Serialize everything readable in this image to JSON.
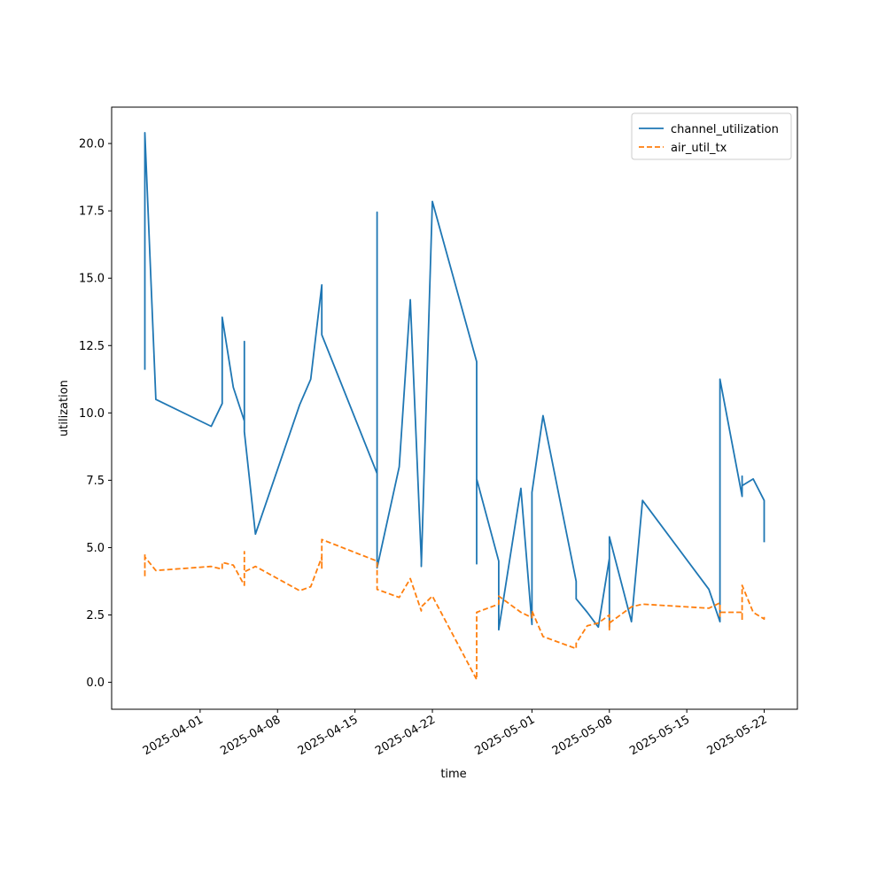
{
  "chart_data": {
    "type": "line",
    "x_label": "time",
    "y_label": "utilization",
    "x": [
      "2025-03-27",
      "2025-03-27",
      "2025-03-27",
      "2025-03-28",
      "2025-04-02",
      "2025-04-03",
      "2025-04-03",
      "2025-04-04",
      "2025-04-05",
      "2025-04-05",
      "2025-04-05",
      "2025-04-06",
      "2025-04-10",
      "2025-04-11",
      "2025-04-12",
      "2025-04-12",
      "2025-04-12",
      "2025-04-17",
      "2025-04-17",
      "2025-04-17",
      "2025-04-19",
      "2025-04-20",
      "2025-04-21",
      "2025-04-21",
      "2025-04-22",
      "2025-04-26",
      "2025-04-26",
      "2025-04-26",
      "2025-04-28",
      "2025-04-28",
      "2025-04-30",
      "2025-05-01",
      "2025-05-01",
      "2025-05-02",
      "2025-05-05",
      "2025-05-05",
      "2025-05-06",
      "2025-05-07",
      "2025-05-08",
      "2025-05-08",
      "2025-05-08",
      "2025-05-10",
      "2025-05-11",
      "2025-05-17",
      "2025-05-18",
      "2025-05-18",
      "2025-05-18",
      "2025-05-18",
      "2025-05-20",
      "2025-05-20",
      "2025-05-20",
      "2025-05-21",
      "2025-05-22",
      "2025-05-22"
    ],
    "series": [
      {
        "name": "channel_utilization",
        "color": "#1f77b4",
        "dash": false,
        "values": [
          11.6,
          14.5,
          20.4,
          10.5,
          9.5,
          10.35,
          13.55,
          10.95,
          9.7,
          12.65,
          9.3,
          5.5,
          10.3,
          11.25,
          14.75,
          13.4,
          12.9,
          7.75,
          17.45,
          4.25,
          8.0,
          14.2,
          4.55,
          4.3,
          17.85,
          11.9,
          4.4,
          7.55,
          4.5,
          1.95,
          7.2,
          2.15,
          7.05,
          9.9,
          3.75,
          3.1,
          2.6,
          2.05,
          4.6,
          2.05,
          5.4,
          2.25,
          6.75,
          3.45,
          2.25,
          6.95,
          4.55,
          11.25,
          6.9,
          7.65,
          7.3,
          7.55,
          6.75,
          5.2
        ]
      },
      {
        "name": "air_util_tx",
        "color": "#ff7f0e",
        "dash": true,
        "values": [
          4.75,
          3.9,
          4.65,
          4.15,
          4.3,
          4.2,
          4.45,
          4.35,
          3.6,
          4.85,
          4.1,
          4.3,
          3.4,
          3.55,
          4.65,
          4.2,
          5.3,
          4.5,
          4.05,
          3.45,
          3.15,
          3.85,
          2.65,
          2.8,
          3.2,
          0.1,
          2.5,
          2.6,
          2.9,
          3.2,
          2.6,
          2.4,
          2.65,
          1.7,
          1.25,
          1.45,
          2.1,
          2.2,
          2.5,
          1.95,
          2.2,
          2.8,
          2.9,
          2.75,
          2.95,
          2.45,
          2.6,
          2.6,
          2.6,
          2.3,
          3.6,
          2.6,
          2.35,
          2.5
        ]
      }
    ],
    "xlim": [
      "2025-03-24",
      "2025-05-25"
    ],
    "xticks": [
      "2025-04-01",
      "2025-04-08",
      "2025-04-15",
      "2025-04-22",
      "2025-05-01",
      "2025-05-08",
      "2025-05-15",
      "2025-05-22"
    ],
    "ylim": [
      -1,
      21.35
    ],
    "yticks": [
      {
        "value": 0,
        "label": "0.0"
      },
      2.5,
      {
        "value": 5,
        "label": "5.0"
      },
      7.5,
      {
        "value": 10,
        "label": "10.0"
      },
      12.5,
      {
        "value": 15,
        "label": "15.0"
      },
      17.5,
      {
        "value": 20,
        "label": "20.0"
      }
    ],
    "legend": "upper right",
    "grid": false
  }
}
